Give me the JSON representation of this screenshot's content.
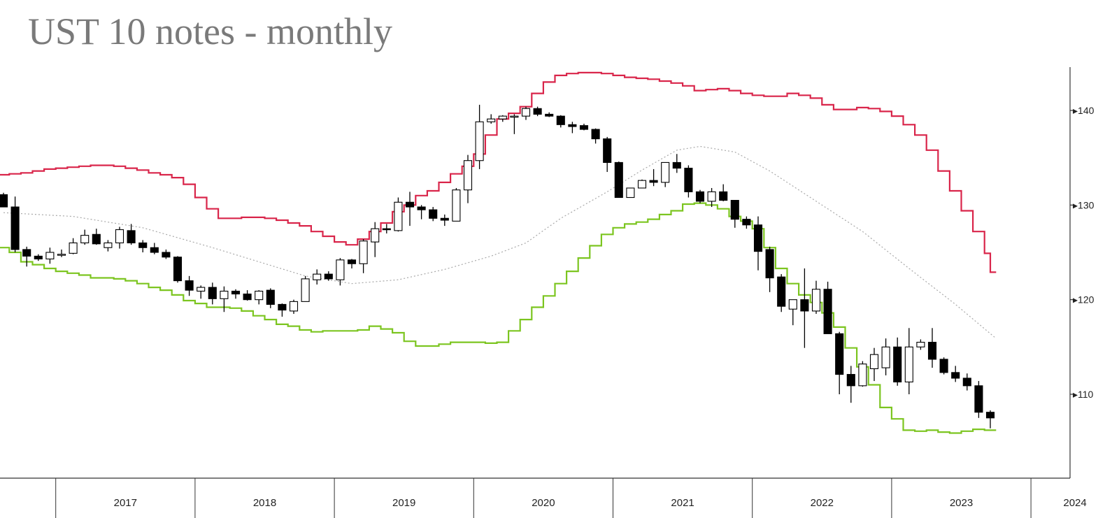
{
  "title": "UST 10 notes - monthly",
  "chart_data": {
    "type": "candlestick",
    "x_start": "2016-08",
    "y_axis": {
      "position": "right",
      "ticks": [
        110,
        120,
        130,
        140
      ],
      "ylim": [
        103.2,
        145.5
      ]
    },
    "x_axis": {
      "labels": [
        "2017",
        "2018",
        "2019",
        "2020",
        "2021",
        "2022",
        "2023",
        "2024"
      ]
    },
    "colors": {
      "up": "#ffffff",
      "down": "#000000",
      "upper_band": "#d9254a",
      "lower_band": "#7cc520",
      "middle": "#a8a8a8",
      "axis": "#333333"
    },
    "candles": [
      [
        131.1,
        131.3,
        129.8,
        129.8
      ],
      [
        129.8,
        130.9,
        125.0,
        125.3
      ],
      [
        125.3,
        125.6,
        123.5,
        124.6
      ],
      [
        124.6,
        124.8,
        124.1,
        124.3
      ],
      [
        124.3,
        125.5,
        123.8,
        125.0
      ],
      [
        124.8,
        125.3,
        124.5,
        124.8
      ],
      [
        124.9,
        126.5,
        124.8,
        126.0
      ],
      [
        126.0,
        127.4,
        125.8,
        126.8
      ],
      [
        126.9,
        127.5,
        125.8,
        125.9
      ],
      [
        125.5,
        126.3,
        125.1,
        126.0
      ],
      [
        126.0,
        127.7,
        125.4,
        127.4
      ],
      [
        127.3,
        128.0,
        125.8,
        126.0
      ],
      [
        126.0,
        126.3,
        125.0,
        125.5
      ],
      [
        125.5,
        126.0,
        124.8,
        125.0
      ],
      [
        125.0,
        125.3,
        124.3,
        124.5
      ],
      [
        124.5,
        124.6,
        121.8,
        122.0
      ],
      [
        122.0,
        122.5,
        120.4,
        121.0
      ],
      [
        120.9,
        121.5,
        120.1,
        121.3
      ],
      [
        121.3,
        121.8,
        119.5,
        120.1
      ],
      [
        120.1,
        121.4,
        118.7,
        120.9
      ],
      [
        120.9,
        121.1,
        120.1,
        120.6
      ],
      [
        120.6,
        121.0,
        119.9,
        120.0
      ],
      [
        120.0,
        121.0,
        119.5,
        120.9
      ],
      [
        121.0,
        121.2,
        119.1,
        119.5
      ],
      [
        119.5,
        119.6,
        118.2,
        118.9
      ],
      [
        118.8,
        120.0,
        118.5,
        119.8
      ],
      [
        119.8,
        122.5,
        119.8,
        122.2
      ],
      [
        122.1,
        123.2,
        121.6,
        122.7
      ],
      [
        122.7,
        123.0,
        122.0,
        122.2
      ],
      [
        122.1,
        124.4,
        121.5,
        124.2
      ],
      [
        124.2,
        124.3,
        123.3,
        123.8
      ],
      [
        123.8,
        126.4,
        122.8,
        126.2
      ],
      [
        126.1,
        128.2,
        124.5,
        127.5
      ],
      [
        127.5,
        128.0,
        127.0,
        127.4
      ],
      [
        127.3,
        130.8,
        127.2,
        130.3
      ],
      [
        130.3,
        131.4,
        127.8,
        129.8
      ],
      [
        129.8,
        130.0,
        128.5,
        129.5
      ],
      [
        129.5,
        129.8,
        128.3,
        128.6
      ],
      [
        128.6,
        129.0,
        127.8,
        128.4
      ],
      [
        128.3,
        131.8,
        128.3,
        131.6
      ],
      [
        131.6,
        135.3,
        130.2,
        134.7
      ],
      [
        134.7,
        140.6,
        133.8,
        138.8
      ],
      [
        138.8,
        139.6,
        138.6,
        139.1
      ],
      [
        139.1,
        139.5,
        138.8,
        139.4
      ],
      [
        139.4,
        139.6,
        137.5,
        139.4
      ],
      [
        139.4,
        140.4,
        139.0,
        140.2
      ],
      [
        140.2,
        140.4,
        139.4,
        139.6
      ],
      [
        139.6,
        139.8,
        139.3,
        139.4
      ],
      [
        139.4,
        139.5,
        138.2,
        138.5
      ],
      [
        138.5,
        138.8,
        137.6,
        138.3
      ],
      [
        138.4,
        138.6,
        137.9,
        138.0
      ],
      [
        138.0,
        138.1,
        136.5,
        137.0
      ],
      [
        137.0,
        137.2,
        133.5,
        134.5
      ],
      [
        134.5,
        134.6,
        130.8,
        130.8
      ],
      [
        130.8,
        131.8,
        130.8,
        131.8
      ],
      [
        131.8,
        132.7,
        131.8,
        132.6
      ],
      [
        132.6,
        133.8,
        132.0,
        132.4
      ],
      [
        132.4,
        134.3,
        131.9,
        134.5
      ],
      [
        134.5,
        135.4,
        133.4,
        133.9
      ],
      [
        133.9,
        134.2,
        130.8,
        131.4
      ],
      [
        131.4,
        131.6,
        130.2,
        130.4
      ],
      [
        130.4,
        131.8,
        129.8,
        131.4
      ],
      [
        131.4,
        132.2,
        130.4,
        130.5
      ],
      [
        130.5,
        130.5,
        127.6,
        128.5
      ],
      [
        128.5,
        128.8,
        127.5,
        127.9
      ],
      [
        127.9,
        128.8,
        123.1,
        125.1
      ],
      [
        125.3,
        125.6,
        120.8,
        122.3
      ],
      [
        122.4,
        122.7,
        118.7,
        119.3
      ],
      [
        119.0,
        120.0,
        117.3,
        120.0
      ],
      [
        120.0,
        123.3,
        114.9,
        118.8
      ],
      [
        118.8,
        122.0,
        118.5,
        121.1
      ],
      [
        121.1,
        121.9,
        116.8,
        116.4
      ],
      [
        116.4,
        116.6,
        110.0,
        112.1
      ],
      [
        112.1,
        113.0,
        109.1,
        110.9
      ],
      [
        110.9,
        113.5,
        110.8,
        113.2
      ],
      [
        112.7,
        114.9,
        111.4,
        114.2
      ],
      [
        112.8,
        115.9,
        112.0,
        115.0
      ],
      [
        115.0,
        116.0,
        110.9,
        111.3
      ],
      [
        111.3,
        117.0,
        110.0,
        115.0
      ],
      [
        115.0,
        115.8,
        114.7,
        115.5
      ],
      [
        115.5,
        117.0,
        112.8,
        113.7
      ],
      [
        113.7,
        113.9,
        112.1,
        112.3
      ],
      [
        112.3,
        113.0,
        111.3,
        111.7
      ],
      [
        111.7,
        112.2,
        110.4,
        110.9
      ],
      [
        110.9,
        111.4,
        107.5,
        108.1
      ],
      [
        108.1,
        108.3,
        106.4,
        107.5
      ]
    ],
    "upper_band": [
      [
        0,
        133.2
      ],
      [
        1,
        133.3
      ],
      [
        2,
        133.4
      ],
      [
        3,
        133.6
      ],
      [
        4,
        133.8
      ],
      [
        5,
        133.9
      ],
      [
        6,
        134.0
      ],
      [
        7,
        134.1
      ],
      [
        8,
        134.2
      ],
      [
        9,
        134.2
      ],
      [
        10,
        134.1
      ],
      [
        11,
        133.9
      ],
      [
        12,
        133.7
      ],
      [
        13,
        133.4
      ],
      [
        14,
        133.2
      ],
      [
        15,
        132.9
      ],
      [
        16,
        132.2
      ],
      [
        17,
        130.8
      ],
      [
        18,
        129.6
      ],
      [
        19,
        128.6
      ],
      [
        20,
        128.6
      ],
      [
        21,
        128.7
      ],
      [
        22,
        128.7
      ],
      [
        23,
        128.6
      ],
      [
        24,
        128.4
      ],
      [
        25,
        128.1
      ],
      [
        26,
        127.8
      ],
      [
        27,
        127.2
      ],
      [
        28,
        126.7
      ],
      [
        29,
        126.1
      ],
      [
        30,
        125.8
      ],
      [
        31,
        126.4
      ],
      [
        32,
        127.2
      ],
      [
        33,
        128.1
      ],
      [
        34,
        129.3
      ],
      [
        35,
        130.0
      ],
      [
        36,
        131.0
      ],
      [
        37,
        131.5
      ],
      [
        38,
        132.4
      ],
      [
        39,
        133.3
      ],
      [
        40,
        134.1
      ],
      [
        41,
        135.4
      ],
      [
        42,
        137.4
      ],
      [
        43,
        139.1
      ],
      [
        44,
        139.7
      ],
      [
        45,
        140.4
      ],
      [
        46,
        141.8
      ],
      [
        47,
        143.0
      ],
      [
        48,
        143.7
      ],
      [
        49,
        143.9
      ],
      [
        50,
        144.0
      ],
      [
        51,
        144.0
      ],
      [
        52,
        143.9
      ],
      [
        53,
        143.7
      ],
      [
        54,
        143.5
      ],
      [
        55,
        143.4
      ],
      [
        56,
        143.3
      ],
      [
        57,
        143.1
      ],
      [
        58,
        142.9
      ],
      [
        59,
        142.6
      ],
      [
        60,
        142.1
      ],
      [
        61,
        142.2
      ],
      [
        62,
        142.3
      ],
      [
        63,
        142.1
      ],
      [
        64,
        141.8
      ],
      [
        65,
        141.6
      ],
      [
        66,
        141.5
      ],
      [
        67,
        141.5
      ],
      [
        68,
        141.8
      ],
      [
        69,
        141.6
      ],
      [
        70,
        141.3
      ],
      [
        71,
        140.6
      ],
      [
        72,
        140.1
      ],
      [
        73,
        140.1
      ],
      [
        74,
        140.3
      ],
      [
        75,
        140.2
      ],
      [
        76,
        139.9
      ],
      [
        77,
        139.4
      ],
      [
        78,
        138.5
      ],
      [
        79,
        137.4
      ],
      [
        80,
        135.8
      ],
      [
        81,
        133.6
      ],
      [
        82,
        131.5
      ],
      [
        83,
        129.4
      ],
      [
        84,
        127.2
      ],
      [
        85,
        124.9
      ],
      [
        85.5,
        122.9
      ]
    ],
    "lower_band": [
      [
        0,
        125.5
      ],
      [
        1,
        125.0
      ],
      [
        2,
        124.0
      ],
      [
        3,
        123.7
      ],
      [
        4,
        123.3
      ],
      [
        5,
        123.0
      ],
      [
        6,
        122.8
      ],
      [
        7,
        122.6
      ],
      [
        8,
        122.3
      ],
      [
        9,
        122.3
      ],
      [
        10,
        122.2
      ],
      [
        11,
        122.0
      ],
      [
        12,
        121.7
      ],
      [
        13,
        121.3
      ],
      [
        14,
        121.0
      ],
      [
        15,
        120.5
      ],
      [
        16,
        119.9
      ],
      [
        17,
        119.6
      ],
      [
        18,
        119.2
      ],
      [
        19,
        119.2
      ],
      [
        20,
        119.1
      ],
      [
        21,
        118.8
      ],
      [
        22,
        118.3
      ],
      [
        23,
        117.9
      ],
      [
        24,
        117.4
      ],
      [
        25,
        117.2
      ],
      [
        26,
        116.8
      ],
      [
        27,
        116.6
      ],
      [
        28,
        116.7
      ],
      [
        29,
        116.7
      ],
      [
        30,
        116.7
      ],
      [
        31,
        116.8
      ],
      [
        32,
        117.2
      ],
      [
        33,
        116.9
      ],
      [
        34,
        116.5
      ],
      [
        35,
        115.6
      ],
      [
        36,
        115.1
      ],
      [
        37,
        115.1
      ],
      [
        38,
        115.3
      ],
      [
        39,
        115.5
      ],
      [
        40,
        115.5
      ],
      [
        41,
        115.5
      ],
      [
        42,
        115.4
      ],
      [
        43,
        115.5
      ],
      [
        44,
        116.7
      ],
      [
        45,
        117.9
      ],
      [
        46,
        119.2
      ],
      [
        47,
        120.4
      ],
      [
        48,
        121.7
      ],
      [
        49,
        123.0
      ],
      [
        50,
        124.4
      ],
      [
        51,
        125.7
      ],
      [
        52,
        126.9
      ],
      [
        53,
        127.6
      ],
      [
        54,
        128.0
      ],
      [
        55,
        128.2
      ],
      [
        56,
        128.5
      ],
      [
        57,
        129.0
      ],
      [
        58,
        129.4
      ],
      [
        59,
        130.1
      ],
      [
        60,
        130.2
      ],
      [
        61,
        130.0
      ],
      [
        62,
        129.6
      ],
      [
        63,
        128.8
      ],
      [
        64,
        128.3
      ],
      [
        65,
        127.5
      ],
      [
        66,
        125.5
      ],
      [
        67,
        123.3
      ],
      [
        68,
        121.7
      ],
      [
        69,
        120.5
      ],
      [
        70,
        119.7
      ],
      [
        71,
        118.6
      ],
      [
        72,
        117.1
      ],
      [
        73,
        114.9
      ],
      [
        74,
        112.9
      ],
      [
        75,
        111.0
      ],
      [
        76,
        108.6
      ],
      [
        77,
        107.4
      ],
      [
        78,
        106.2
      ],
      [
        79,
        106.1
      ],
      [
        80,
        106.2
      ],
      [
        81,
        106.0
      ],
      [
        82,
        105.9
      ],
      [
        83,
        106.1
      ],
      [
        84,
        106.3
      ],
      [
        85,
        106.2
      ],
      [
        85.5,
        106.2
      ]
    ],
    "middle_line": [
      [
        0,
        129.2
      ],
      [
        6,
        128.8
      ],
      [
        12,
        127.6
      ],
      [
        18,
        125.5
      ],
      [
        22,
        124.0
      ],
      [
        26,
        122.5
      ],
      [
        30,
        121.7
      ],
      [
        34,
        122.1
      ],
      [
        38,
        123.2
      ],
      [
        42,
        124.6
      ],
      [
        45,
        126.0
      ],
      [
        48,
        128.6
      ],
      [
        52,
        131.4
      ],
      [
        55,
        133.7
      ],
      [
        58,
        135.8
      ],
      [
        60,
        136.2
      ],
      [
        63,
        135.6
      ],
      [
        66,
        133.6
      ],
      [
        70,
        130.4
      ],
      [
        74,
        127.2
      ],
      [
        78,
        123.3
      ],
      [
        82,
        119.5
      ],
      [
        85.4,
        116.0
      ]
    ]
  }
}
